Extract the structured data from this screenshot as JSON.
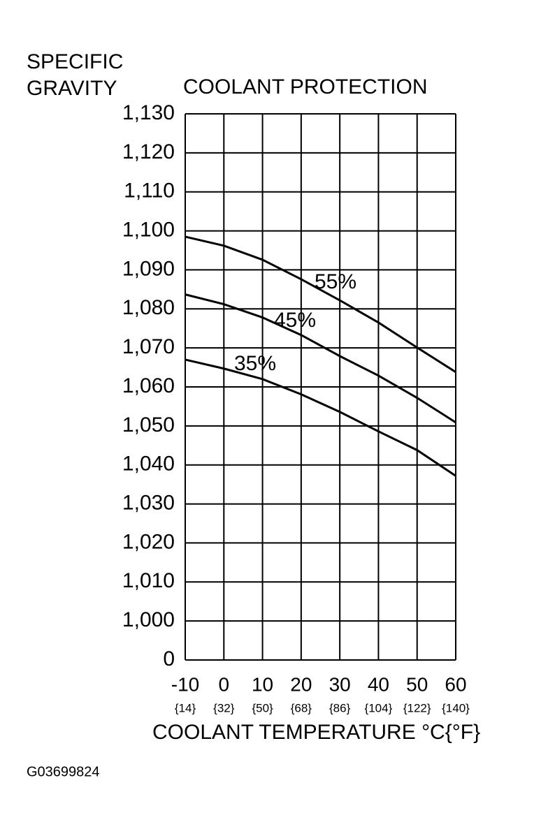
{
  "chart_data": {
    "type": "line",
    "title": "COOLANT PROTECTION",
    "y_label_lines": [
      "SPECIFIC",
      "GRAVITY"
    ],
    "x_label": "COOLANT TEMPERATURE °C{°F}",
    "footer": "G03699824",
    "x": [
      -10,
      0,
      10,
      20,
      30,
      40,
      50,
      60
    ],
    "x_secondary_labels": [
      "{14}",
      "{32}",
      "{50}",
      "{68}",
      "{86}",
      "{104}",
      "{122}",
      "{140}"
    ],
    "xlim": [
      -10,
      60
    ],
    "xticks": [
      -10,
      0,
      10,
      20,
      30,
      40,
      50,
      60
    ],
    "ylim": [
      0.99,
      1.13
    ],
    "axis_break": true,
    "yticks": [
      {
        "value": 1.13,
        "label": "1,130"
      },
      {
        "value": 1.12,
        "label": "1,120"
      },
      {
        "value": 1.11,
        "label": "1,110"
      },
      {
        "value": 1.1,
        "label": "1,100"
      },
      {
        "value": 1.09,
        "label": "1,090"
      },
      {
        "value": 1.08,
        "label": "1,080"
      },
      {
        "value": 1.07,
        "label": "1,070"
      },
      {
        "value": 1.06,
        "label": "1,060"
      },
      {
        "value": 1.05,
        "label": "1,050"
      },
      {
        "value": 1.04,
        "label": "1,040"
      },
      {
        "value": 1.03,
        "label": "1,030"
      },
      {
        "value": 1.02,
        "label": "1,020"
      },
      {
        "value": 1.01,
        "label": "1,010"
      },
      {
        "value": 1.0,
        "label": "1,000"
      },
      0
    ],
    "grid": true,
    "series": [
      {
        "name": "55%",
        "color": "#000000",
        "values": [
          1.0985,
          1.0962,
          1.0926,
          1.0876,
          1.0822,
          1.0765,
          1.0701,
          1.0638
        ]
      },
      {
        "name": "45%",
        "color": "#000000",
        "values": [
          1.0837,
          1.0812,
          1.0778,
          1.0733,
          1.0679,
          1.0629,
          1.0572,
          1.0509
        ]
      },
      {
        "name": "35%",
        "color": "#000000",
        "values": [
          1.067,
          1.0647,
          1.062,
          1.0581,
          1.0536,
          1.0486,
          1.0438,
          1.0372
        ]
      }
    ]
  }
}
